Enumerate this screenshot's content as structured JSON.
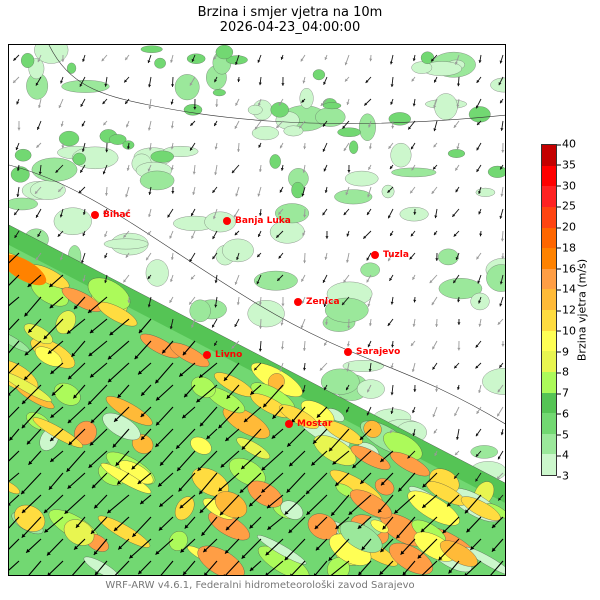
{
  "title": "Brzina i smjer vjetra na 10m",
  "subtitle": "2026-04-23_04:00:00",
  "cities": [
    {
      "name": "Bihać"
    },
    {
      "name": "Banja Luka"
    },
    {
      "name": "Tuzla"
    },
    {
      "name": "Zenica"
    },
    {
      "name": "Sarajevo"
    },
    {
      "name": "Livno"
    },
    {
      "name": "Mostar"
    }
  ],
  "colorbar": {
    "label": "Brzina vjetra (m/s)",
    "ticks": [
      "3",
      "4",
      "5",
      "6",
      "7",
      "8",
      "9",
      "10",
      "12",
      "14",
      "16",
      "18",
      "20",
      "25",
      "30",
      "35",
      "40"
    ],
    "colors": [
      "#ccf7cc",
      "#9be89b",
      "#72d872",
      "#55c455",
      "#acfa5a",
      "#e8f550",
      "#ffff55",
      "#ffdc40",
      "#ffba38",
      "#ff9e45",
      "#ff8200",
      "#ff6600",
      "#ff4411",
      "#ff2222",
      "#ff0000",
      "#c40000"
    ]
  },
  "footer": "WRF-ARW v4.6.1, Federalni hidrometeorološki zavod Sarajevo"
}
